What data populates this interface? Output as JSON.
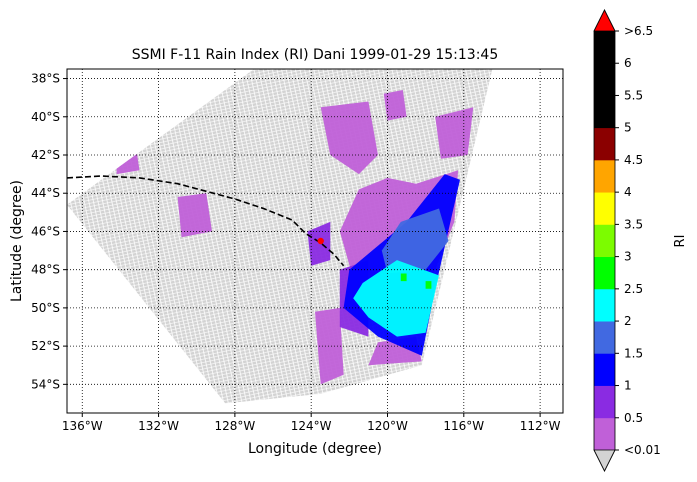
{
  "chart_data": {
    "type": "heatmap",
    "title": "SSMI F-11 Rain Index (RI) Dani 1999-01-29 15:13:45",
    "xlabel": "Longitude (degree)",
    "ylabel": "Latitude (degree)",
    "xlim": [
      -136.8,
      -110.8
    ],
    "ylim": [
      -55.5,
      -37.5
    ],
    "x_ticks": [
      {
        "value": -136,
        "label": "136°W"
      },
      {
        "value": -132,
        "label": "132°W"
      },
      {
        "value": -128,
        "label": "128°W"
      },
      {
        "value": -124,
        "label": "124°W"
      },
      {
        "value": -120,
        "label": "120°W"
      },
      {
        "value": -116,
        "label": "116°W"
      },
      {
        "value": -112,
        "label": "112°W"
      }
    ],
    "y_ticks": [
      {
        "value": -38,
        "label": "38°S"
      },
      {
        "value": -40,
        "label": "40°S"
      },
      {
        "value": -42,
        "label": "42°S"
      },
      {
        "value": -44,
        "label": "44°S"
      },
      {
        "value": -46,
        "label": "46°S"
      },
      {
        "value": -48,
        "label": "48°S"
      },
      {
        "value": -50,
        "label": "50°S"
      },
      {
        "value": -52,
        "label": "52°S"
      },
      {
        "value": -54,
        "label": "54°S"
      }
    ],
    "grid": "dotted",
    "colorbar": {
      "label": "RI",
      "boundaries": [
        0.01,
        0.5,
        1,
        1.5,
        2,
        2.5,
        3,
        3.5,
        4,
        4.5,
        5,
        5.5,
        6,
        6.5
      ],
      "tick_labels": [
        "<0.01",
        "0.5",
        "1",
        "1.5",
        "2",
        "2.5",
        "3",
        "3.5",
        "4",
        "4.5",
        "5",
        "5.5",
        "6",
        ">6.5"
      ],
      "colors": [
        "#c060d8",
        "#8a2be2",
        "#0000ff",
        "#4169e1",
        "#00ffff",
        "#00ff00",
        "#7cfc00",
        "#ffff00",
        "#ffa500",
        "#8b0000",
        "#000000",
        "#000000",
        "#000000"
      ],
      "under_color": "#d3d3d3",
      "over_color": "#ff0000"
    },
    "swath": {
      "corners": [
        [
          -136.8,
          -44.6
        ],
        [
          -127.0,
          -37.5
        ],
        [
          -114.5,
          -37.5
        ],
        [
          -118.2,
          -53.0
        ],
        [
          -123.5,
          -54.5
        ],
        [
          -128.5,
          -55.0
        ]
      ],
      "no_rain_color": "#d3d3d3"
    },
    "rain_regions": [
      {
        "ri": 0.3,
        "polygon": [
          [
            -118.5,
            -43.5
          ],
          [
            -116.3,
            -42.8
          ],
          [
            -116.5,
            -45.5
          ],
          [
            -118.5,
            -50.5
          ],
          [
            -121.5,
            -49.5
          ],
          [
            -122.5,
            -46.0
          ],
          [
            -121.5,
            -43.8
          ],
          [
            -120.0,
            -43.2
          ]
        ]
      },
      {
        "ri": 0.3,
        "polygon": [
          [
            -120.5,
            -51.8
          ],
          [
            -118.5,
            -51.5
          ],
          [
            -118.2,
            -52.8
          ],
          [
            -121.0,
            -53.0
          ]
        ]
      },
      {
        "ri": 0.3,
        "polygon": [
          [
            -134.2,
            -41.8
          ],
          [
            -133.2,
            -41.5
          ],
          [
            -133.0,
            -42.8
          ],
          [
            -134.2,
            -43.0
          ]
        ]
      },
      {
        "ri": 0.3,
        "polygon": [
          [
            -131.0,
            -44.2
          ],
          [
            -129.5,
            -44.0
          ],
          [
            -129.2,
            -46.0
          ],
          [
            -130.8,
            -46.3
          ]
        ]
      },
      {
        "ri": 0.3,
        "polygon": [
          [
            -123.5,
            -39.5
          ],
          [
            -121.0,
            -39.2
          ],
          [
            -120.5,
            -42.0
          ],
          [
            -121.5,
            -43.0
          ],
          [
            -123.0,
            -42.0
          ]
        ]
      },
      {
        "ri": 0.3,
        "polygon": [
          [
            -117.5,
            -40.0
          ],
          [
            -115.5,
            -39.5
          ],
          [
            -115.8,
            -42.0
          ],
          [
            -117.2,
            -42.2
          ]
        ]
      },
      {
        "ri": 0.3,
        "polygon": [
          [
            -120.2,
            -38.8
          ],
          [
            -119.2,
            -38.6
          ],
          [
            -119.0,
            -40.0
          ],
          [
            -120.0,
            -40.2
          ]
        ]
      },
      {
        "ri": 0.3,
        "polygon": [
          [
            -123.8,
            -50.2
          ],
          [
            -122.5,
            -50.0
          ],
          [
            -122.3,
            -53.5
          ],
          [
            -123.5,
            -54.0
          ]
        ]
      },
      {
        "ri": 0.8,
        "polygon": [
          [
            -122.5,
            -48.0
          ],
          [
            -121.0,
            -47.5
          ],
          [
            -121.0,
            -51.5
          ],
          [
            -122.5,
            -51.0
          ]
        ]
      },
      {
        "ri": 0.8,
        "polygon": [
          [
            -124.2,
            -46.0
          ],
          [
            -123.0,
            -45.5
          ],
          [
            -123.0,
            -47.5
          ],
          [
            -124.0,
            -47.8
          ]
        ]
      },
      {
        "ri": 1.2,
        "polygon": [
          [
            -119.0,
            -45.5
          ],
          [
            -117.0,
            -43.0
          ],
          [
            -116.2,
            -43.3
          ],
          [
            -117.5,
            -49.0
          ],
          [
            -118.2,
            -52.5
          ],
          [
            -120.5,
            -51.5
          ],
          [
            -122.3,
            -50.0
          ],
          [
            -122.0,
            -48.0
          ]
        ]
      },
      {
        "ri": 1.7,
        "polygon": [
          [
            -119.3,
            -45.5
          ],
          [
            -117.3,
            -44.8
          ],
          [
            -116.8,
            -46.5
          ],
          [
            -118.0,
            -48.0
          ],
          [
            -120.0,
            -48.2
          ],
          [
            -120.3,
            -47.0
          ]
        ]
      },
      {
        "ri": 2.2,
        "polygon": [
          [
            -121.3,
            -48.7
          ],
          [
            -119.5,
            -47.5
          ],
          [
            -117.3,
            -48.3
          ],
          [
            -118.0,
            -51.3
          ],
          [
            -119.5,
            -51.5
          ],
          [
            -121.0,
            -50.5
          ],
          [
            -121.8,
            -49.5
          ]
        ]
      },
      {
        "ri": 2.7,
        "polygon": [
          [
            -119.3,
            -48.2
          ],
          [
            -119.0,
            -48.2
          ],
          [
            -119.0,
            -48.6
          ],
          [
            -119.3,
            -48.6
          ]
        ]
      },
      {
        "ri": 2.7,
        "polygon": [
          [
            -118.0,
            -48.6
          ],
          [
            -117.7,
            -48.6
          ],
          [
            -117.7,
            -49.0
          ],
          [
            -118.0,
            -49.0
          ]
        ]
      }
    ],
    "track": {
      "points": [
        [
          -136.8,
          -43.2
        ],
        [
          -135.0,
          -43.1
        ],
        [
          -133.0,
          -43.2
        ],
        [
          -131.0,
          -43.5
        ],
        [
          -129.5,
          -43.9
        ],
        [
          -128.0,
          -44.3
        ],
        [
          -126.5,
          -44.8
        ],
        [
          -125.0,
          -45.4
        ],
        [
          -124.3,
          -46.1
        ],
        [
          -123.5,
          -46.6
        ],
        [
          -122.8,
          -47.2
        ],
        [
          -122.3,
          -47.8
        ]
      ],
      "style": "dashed",
      "color": "#000000"
    },
    "storm_center": {
      "lon": -123.5,
      "lat": -46.5,
      "color": "#ff0000"
    }
  }
}
